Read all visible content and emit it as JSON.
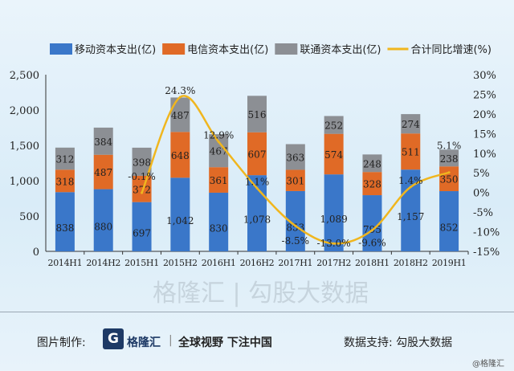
{
  "chart_data": {
    "type": "bar",
    "categories": [
      "2014H1",
      "2014H2",
      "2015H1",
      "2015H2",
      "2016H1",
      "2016H2",
      "2017H1",
      "2017H2",
      "2018H1",
      "2018H2",
      "2019H1"
    ],
    "series": [
      {
        "name": "移动资本支出(亿)",
        "values": [
          838,
          880,
          697,
          1042,
          830,
          1078,
          853,
          1089,
          795,
          1157,
          852
        ],
        "color": "#3a77c9",
        "labels": [
          "838",
          "880",
          "697",
          "1,042",
          "830",
          "1,078",
          "853",
          "1,089",
          "795",
          "1,157",
          "852"
        ]
      },
      {
        "name": "电信资本支出(亿)",
        "values": [
          318,
          487,
          372,
          648,
          361,
          607,
          301,
          574,
          328,
          511,
          350
        ],
        "color": "#e06a26",
        "labels": [
          "318",
          "487",
          "372",
          "648",
          "361",
          "607",
          "301",
          "574",
          "328",
          "511",
          "350"
        ]
      },
      {
        "name": "联通资本支出(亿)",
        "values": [
          312,
          384,
          398,
          487,
          467,
          516,
          363,
          252,
          248,
          274,
          238
        ],
        "color": "#8c8f94",
        "labels": [
          "312",
          "384",
          "398",
          "487",
          "467",
          "516",
          "363",
          "252",
          "248",
          "274",
          "238"
        ]
      }
    ],
    "line": {
      "name": "合计同比增速(%)",
      "color": "#f0b61e",
      "values": [
        null,
        null,
        -0.1,
        24.3,
        12.9,
        1.1,
        -8.5,
        -13.0,
        -9.6,
        1.4,
        5.1
      ],
      "labels": [
        "",
        "",
        "-0.1%",
        "24.3%",
        "12.9%",
        "1.1%",
        "-8.5%",
        "-13.0%",
        "-9.6%",
        "1.4%",
        "5.1%"
      ]
    },
    "ylim": [
      0,
      2500
    ],
    "yticks": [
      "0",
      "500",
      "1,000",
      "1,500",
      "2,000",
      "2,500"
    ],
    "y2lim": [
      -15,
      30
    ],
    "y2ticks": [
      "-15%",
      "-10%",
      "-5%",
      "0%",
      "5%",
      "10%",
      "15%",
      "20%",
      "25%",
      "30%"
    ],
    "legend": "top"
  },
  "footer": {
    "made_by": "图片制作:",
    "logo_mark": "G",
    "brand": "格隆汇",
    "slogan": "全球视野 下注中国",
    "data_source": "数据支持: 勾股大数据",
    "credit": "@格隆汇"
  },
  "watermark": "格隆汇 | 勾股大数据"
}
